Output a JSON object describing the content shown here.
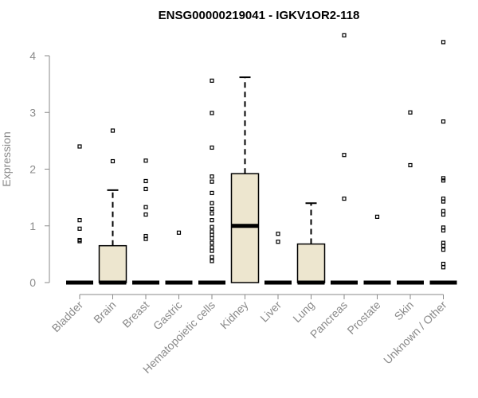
{
  "chart_data": {
    "type": "box",
    "title": "ENSG00000219041 - IGKV1OR2-118",
    "xlabel": "",
    "ylabel": "Expression",
    "ylim": [
      0,
      4.4
    ],
    "yticks": [
      0,
      1,
      2,
      3,
      4
    ],
    "grid": false,
    "box_fill": "#ede6cf",
    "categories": [
      "Bladder",
      "Brain",
      "Breast",
      "Gastric",
      "Hematopoietic cells",
      "Kidney",
      "Liver",
      "Lung",
      "Pancreas",
      "Prostate",
      "Skin",
      "Unknown / Other"
    ],
    "boxes": [
      {
        "q1": 0,
        "median": 0,
        "q3": 0,
        "whisker_low": 0,
        "whisker_high": 0,
        "outliers": [
          2.4,
          1.1,
          0.95,
          0.75,
          0.73
        ]
      },
      {
        "q1": 0,
        "median": 0,
        "q3": 0.65,
        "whisker_low": 0,
        "whisker_high": 1.63,
        "outliers": [
          2.68,
          2.14
        ]
      },
      {
        "q1": 0,
        "median": 0,
        "q3": 0,
        "whisker_low": 0,
        "whisker_high": 0,
        "outliers": [
          2.15,
          1.79,
          1.65,
          1.33,
          1.2,
          0.82,
          0.77
        ]
      },
      {
        "q1": 0,
        "median": 0,
        "q3": 0,
        "whisker_low": 0,
        "whisker_high": 0,
        "outliers": [
          0.88
        ]
      },
      {
        "q1": 0,
        "median": 0,
        "q3": 0,
        "whisker_low": 0,
        "whisker_high": 0,
        "outliers": [
          3.56,
          2.99,
          2.38,
          1.87,
          1.78,
          1.58,
          1.4,
          1.3,
          1.22,
          1.1,
          0.98,
          0.9,
          0.84,
          0.78,
          0.7,
          0.62,
          0.56,
          0.45,
          0.38
        ]
      },
      {
        "q1": 0,
        "median": 1.0,
        "q3": 1.92,
        "whisker_low": 0,
        "whisker_high": 3.62,
        "outliers": []
      },
      {
        "q1": 0,
        "median": 0,
        "q3": 0,
        "whisker_low": 0,
        "whisker_high": 0,
        "outliers": [
          0.86,
          0.72
        ]
      },
      {
        "q1": 0,
        "median": 0,
        "q3": 0.68,
        "whisker_low": 0,
        "whisker_high": 1.4,
        "outliers": []
      },
      {
        "q1": 0,
        "median": 0,
        "q3": 0,
        "whisker_low": 0,
        "whisker_high": 0,
        "outliers": [
          4.36,
          2.25,
          1.48
        ]
      },
      {
        "q1": 0,
        "median": 0,
        "q3": 0,
        "whisker_low": 0,
        "whisker_high": 0,
        "outliers": [
          1.16
        ]
      },
      {
        "q1": 0,
        "median": 0,
        "q3": 0,
        "whisker_low": 0,
        "whisker_high": 0,
        "outliers": [
          3.0,
          2.07
        ]
      },
      {
        "q1": 0,
        "median": 0,
        "q3": 0,
        "whisker_low": 0,
        "whisker_high": 0,
        "outliers": [
          4.24,
          2.84,
          1.84,
          1.8,
          1.48,
          1.43,
          1.26,
          1.2,
          0.97,
          0.92,
          0.7,
          0.65,
          0.58,
          0.33,
          0.27
        ]
      }
    ]
  }
}
